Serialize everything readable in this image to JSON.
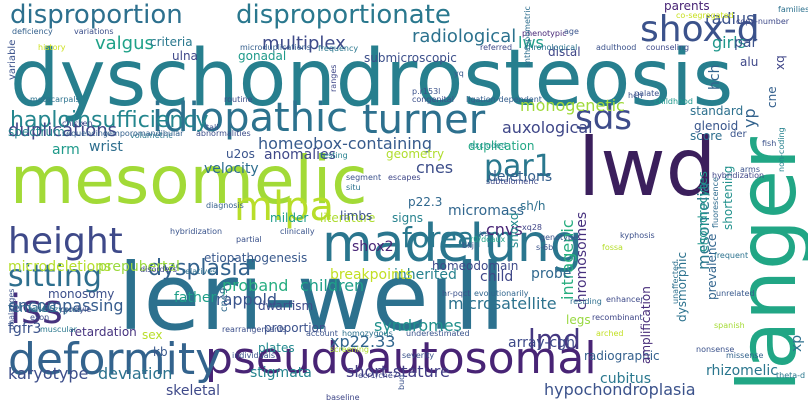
{
  "words": [
    {
      "text": "dyschondrosteosis",
      "color": "#277f8e"
    },
    {
      "text": "leri-weill",
      "color": "#2c718e"
    },
    {
      "text": "mesomelic",
      "color": "#a2da37"
    },
    {
      "text": "lwd",
      "color": "#3b1f5c"
    },
    {
      "text": "langer",
      "color": "#21a685"
    },
    {
      "text": "madelung",
      "color": "#2a768e"
    },
    {
      "text": "pseudoautosomal",
      "color": "#482475"
    },
    {
      "text": "deformity",
      "color": "#33638d"
    },
    {
      "text": "idiopathic",
      "color": "#2c728e"
    },
    {
      "text": "turner",
      "color": "#2d708e"
    },
    {
      "text": "shox-d",
      "color": "#3b528b"
    },
    {
      "text": "height",
      "color": "#3e4989"
    },
    {
      "text": "mlpa",
      "color": "#b8de29"
    },
    {
      "text": "iss",
      "color": "#46327e"
    },
    {
      "text": "disproportion",
      "color": "#2d708e"
    },
    {
      "text": "disproportionate",
      "color": "#2a788e"
    },
    {
      "text": "sds",
      "color": "#3e4c8a"
    },
    {
      "text": "par1",
      "color": "#2a788e"
    },
    {
      "text": "haploinsufficiency",
      "color": "#24868e"
    },
    {
      "text": "sitting",
      "color": "#2e6f8e"
    },
    {
      "text": "dysplasia",
      "color": "#33628d"
    },
    {
      "text": "forearm",
      "color": "#2a788e"
    },
    {
      "text": "lmd",
      "color": "#453781"
    },
    {
      "text": "duplications",
      "color": "#3f4788"
    },
    {
      "text": "valgus",
      "color": "#1fa188"
    },
    {
      "text": "multiplex",
      "color": "#3e4a89"
    },
    {
      "text": "radiological",
      "color": "#2c728e"
    },
    {
      "text": "girls",
      "color": "#1f978b"
    },
    {
      "text": "radius",
      "color": "#3b528b"
    },
    {
      "text": "lws",
      "color": "#1f9e89"
    },
    {
      "text": "monogenetic",
      "color": "#a0da39"
    },
    {
      "text": "auxological",
      "color": "#3f4788"
    },
    {
      "text": "homeobox-containing",
      "color": "#375b8d"
    },
    {
      "text": "encompassing",
      "color": "#365c8d"
    },
    {
      "text": "microdeletions",
      "color": "#b5de2b"
    },
    {
      "text": "prepubertal",
      "color": "#9bd93c"
    },
    {
      "text": "father",
      "color": "#1f9e89"
    },
    {
      "text": "proband",
      "color": "#27ad81"
    },
    {
      "text": "rappold",
      "color": "#3a548c"
    },
    {
      "text": "children",
      "color": "#1f9f88"
    },
    {
      "text": "skeletal",
      "color": "#3e4989"
    },
    {
      "text": "stigmata",
      "color": "#25848e"
    },
    {
      "text": "short-stature",
      "color": "#433e85"
    },
    {
      "text": "karyotype",
      "color": "#3d4e8a"
    },
    {
      "text": "deviation",
      "color": "#2c738e"
    },
    {
      "text": "hypochondroplasia",
      "color": "#3b528b"
    },
    {
      "text": "rhizomelic",
      "color": "#2a768e"
    },
    {
      "text": "xp22.33",
      "color": "#31668e"
    },
    {
      "text": "syndromes",
      "color": "#21918c"
    },
    {
      "text": "microsatellite",
      "color": "#2c728e"
    },
    {
      "text": "array-cgh",
      "color": "#3e4a89"
    },
    {
      "text": "radiographic",
      "color": "#34608d"
    },
    {
      "text": "cubitus",
      "color": "#2a788e"
    },
    {
      "text": "chromosomes",
      "color": "#46307e"
    },
    {
      "text": "intragenic",
      "color": "#28ae80"
    },
    {
      "text": "mesomelia",
      "color": "#2a788e"
    },
    {
      "text": "dysmorphic",
      "color": "#2c728e"
    },
    {
      "text": "prevalence",
      "color": "#32658e"
    },
    {
      "text": "shortening",
      "color": "#21918c"
    },
    {
      "text": "chondrocytes",
      "color": "#1f968b"
    },
    {
      "text": "amplification",
      "color": "#472c7a"
    },
    {
      "text": "xp",
      "color": "#2d708e"
    },
    {
      "text": "yp",
      "color": "#33638d"
    },
    {
      "text": "hch",
      "color": "#33638d"
    },
    {
      "text": "par",
      "color": "#3b528b"
    },
    {
      "text": "cnvs",
      "color": "#482576"
    },
    {
      "text": "cnes",
      "color": "#3d4e8a"
    },
    {
      "text": "deletions",
      "color": "#34608d"
    },
    {
      "text": "anomalies",
      "color": "#3f4889"
    },
    {
      "text": "velocity",
      "color": "#2e6e8e"
    },
    {
      "text": "u2os",
      "color": "#3a548c"
    },
    {
      "text": "arm",
      "color": "#1f9a8a"
    },
    {
      "text": "wrist",
      "color": "#2e6e8e"
    },
    {
      "text": "spectrum",
      "color": "#25848e"
    },
    {
      "text": "criteria",
      "color": "#2a788e"
    },
    {
      "text": "ulna",
      "color": "#3f4889"
    },
    {
      "text": "gonadal",
      "color": "#1f9a8a"
    },
    {
      "text": "distal",
      "color": "#404688"
    },
    {
      "text": "parents",
      "color": "#482475"
    },
    {
      "text": "submicroscopic",
      "color": "#3c4f8a"
    },
    {
      "text": "micromass",
      "color": "#31668e"
    },
    {
      "text": "sh/h",
      "color": "#2d708e"
    },
    {
      "text": "p22.3",
      "color": "#31688e"
    },
    {
      "text": "milder",
      "color": "#1f9e89"
    },
    {
      "text": "literature",
      "color": "#addc30"
    },
    {
      "text": "signs",
      "color": "#26828e"
    },
    {
      "text": "probe",
      "color": "#31688e"
    },
    {
      "text": "shoxd",
      "color": "#23898e"
    },
    {
      "text": "child",
      "color": "#3f4788"
    },
    {
      "text": "legs",
      "color": "#97d83f"
    },
    {
      "text": "inherited",
      "color": "#26828e"
    },
    {
      "text": "homeodomain",
      "color": "#3e4a89"
    },
    {
      "text": "breakpoints",
      "color": "#c2df23"
    },
    {
      "text": "limbs",
      "color": "#3b528b"
    },
    {
      "text": "shox2",
      "color": "#482576"
    },
    {
      "text": "etiopathogenesis",
      "color": "#38588c"
    },
    {
      "text": "dwarfism",
      "color": "#3e4c8a"
    },
    {
      "text": "proportion",
      "color": "#3b518b"
    },
    {
      "text": "plates",
      "color": "#23898e"
    },
    {
      "text": "fgfr3",
      "color": "#3b528b"
    },
    {
      "text": "females",
      "color": "#2f6b8e"
    },
    {
      "text": "monosomy",
      "color": "#3c4f8a"
    },
    {
      "text": "retardation",
      "color": "#46337f"
    },
    {
      "text": "sex",
      "color": "#b8de29"
    },
    {
      "text": "kb",
      "color": "#38588c"
    },
    {
      "text": "cne9",
      "color": "#306a8e"
    },
    {
      "text": "glenoid",
      "color": "#39568c"
    },
    {
      "text": "score",
      "color": "#2e6e8e"
    },
    {
      "text": "der",
      "color": "#3a548c"
    },
    {
      "text": "standard",
      "color": "#2d708e"
    },
    {
      "text": "cne",
      "color": "#34608d"
    },
    {
      "text": "alu",
      "color": "#3f4889"
    },
    {
      "text": "xq",
      "color": "#404688"
    },
    {
      "text": "variable",
      "color": "#3b528b"
    },
    {
      "text": "duplication",
      "color": "#22a785"
    },
    {
      "text": "geometry",
      "color": "#b0dd2f"
    },
    {
      "text": "phenotypic",
      "color": "#482878"
    },
    {
      "text": "individuals",
      "color": "#3b528b"
    },
    {
      "text": "frequent",
      "color": "#2c728e"
    },
    {
      "text": "unrelated",
      "color": "#38588c"
    },
    {
      "text": "spanish",
      "color": "#a5db36"
    },
    {
      "text": "fluorescence",
      "color": "#2f6c8e"
    },
    {
      "text": "missense",
      "color": "#33638d"
    },
    {
      "text": "nonsense",
      "color": "#3b528b"
    },
    {
      "text": "hybridization",
      "color": "#404688"
    },
    {
      "text": "chicken",
      "color": "#3f4889"
    },
    {
      "text": "sequencing",
      "color": "#34618d"
    },
    {
      "text": "metacarpals",
      "color": "#2c728e"
    },
    {
      "text": "frequency",
      "color": "#2a778e"
    },
    {
      "text": "microduplications",
      "color": "#355f8d"
    },
    {
      "text": "congenital",
      "color": "#3c508b"
    },
    {
      "text": "ligation-dependent",
      "color": "#355e8d"
    },
    {
      "text": "routine",
      "color": "#3d4e8a"
    },
    {
      "text": "chronological",
      "color": "#2c738e"
    },
    {
      "text": "adulthood",
      "color": "#3b528b"
    },
    {
      "text": "counseling",
      "color": "#3e4a89"
    },
    {
      "text": "copy-number",
      "color": "#3e4989"
    },
    {
      "text": "families",
      "color": "#2c718e"
    },
    {
      "text": "deficiency",
      "color": "#34618d"
    },
    {
      "text": "variations",
      "color": "#3c4f8a"
    },
    {
      "text": "history",
      "color": "#cde11d"
    },
    {
      "text": "age",
      "color": "#3a548c"
    },
    {
      "text": "co-segregated",
      "color": "#c8e020"
    },
    {
      "text": "referred",
      "color": "#3e4a89"
    },
    {
      "text": "palate",
      "color": "#3b528b"
    },
    {
      "text": "anthropometric",
      "color": "#2e6e8e"
    },
    {
      "text": "yq",
      "color": "#38598c"
    },
    {
      "text": "p.r153l",
      "color": "#3b528b"
    },
    {
      "text": "ranges",
      "color": "#3f4889"
    },
    {
      "text": "excluded",
      "color": "#1f948c"
    },
    {
      "text": "volumetric",
      "color": "#2a788e"
    },
    {
      "text": "tall",
      "color": "#3c508b"
    },
    {
      "text": "temporomandibular",
      "color": "#34618d"
    },
    {
      "text": "abnormalities",
      "color": "#3d4e8a"
    },
    {
      "text": "testing",
      "color": "#26818e"
    },
    {
      "text": "childhood",
      "color": "#1f988b"
    },
    {
      "text": "segment",
      "color": "#3b528b"
    },
    {
      "text": "situ",
      "color": "#2c718e"
    },
    {
      "text": "escapes",
      "color": "#3f4788"
    },
    {
      "text": "subtelomeric",
      "color": "#3e4989"
    },
    {
      "text": "diagnosis",
      "color": "#355f8d"
    },
    {
      "text": "clinically",
      "color": "#3a548c"
    },
    {
      "text": "partial",
      "color": "#3b528b"
    },
    {
      "text": "hybridization2",
      "color": "#3a548c"
    },
    {
      "text": "disorders",
      "color": "#3f4788"
    },
    {
      "text": "relatives",
      "color": "#2d708e"
    },
    {
      "text": "evolutionarily",
      "color": "#31668e"
    },
    {
      "text": "hr-pqct",
      "color": "#3b528b"
    },
    {
      "text": "residing",
      "color": "#2e6f8e"
    },
    {
      "text": "recombinant",
      "color": "#3f4788"
    },
    {
      "text": "arched",
      "color": "#c2df23"
    },
    {
      "text": "heterozygous",
      "color": "#2c728e"
    },
    {
      "text": "exon",
      "color": "#3d4e8a"
    },
    {
      "text": "condyle",
      "color": "#3e4a89"
    },
    {
      "text": "phalanges",
      "color": "#3b528b"
    },
    {
      "text": "muscular",
      "color": "#2a788e"
    },
    {
      "text": "rearrangements",
      "color": "#3c4f8a"
    },
    {
      "text": "account",
      "color": "#3b528b"
    },
    {
      "text": "homozygous",
      "color": "#2c718e"
    },
    {
      "text": "underestimated",
      "color": "#3a548c"
    },
    {
      "text": "ecr1/cne7",
      "color": "#3f4788"
    },
    {
      "text": "baseline",
      "color": "#3f4788"
    },
    {
      "text": "bud",
      "color": "#3b528b"
    },
    {
      "text": "fish",
      "color": "#3b528b"
    },
    {
      "text": "non-coding",
      "color": "#26828e"
    },
    {
      "text": "theta-d",
      "color": "#2a788e"
    },
    {
      "text": "unaffected",
      "color": "#2d708e"
    },
    {
      "text": "enhancer",
      "color": "#3e4a89"
    },
    {
      "text": "vs",
      "color": "#3b528b"
    },
    {
      "text": "xq28",
      "color": "#404688"
    },
    {
      "text": "genotype",
      "color": "#3b528b"
    },
    {
      "text": "r0/dcaux",
      "color": "#1fa188"
    },
    {
      "text": "s-6b",
      "color": "#3b528b"
    },
    {
      "text": "bkj",
      "color": "#3b528b"
    },
    {
      "text": "fossa",
      "color": "#b5de2b"
    },
    {
      "text": "kyphosis",
      "color": "#3c508b"
    },
    {
      "text": "hch2",
      "color": "#3b528b"
    },
    {
      "text": "arms",
      "color": "#3b528b"
    },
    {
      "text": "screening",
      "color": "#b0dd2f"
    },
    {
      "text": "severity",
      "color": "#3b528b"
    }
  ]
}
